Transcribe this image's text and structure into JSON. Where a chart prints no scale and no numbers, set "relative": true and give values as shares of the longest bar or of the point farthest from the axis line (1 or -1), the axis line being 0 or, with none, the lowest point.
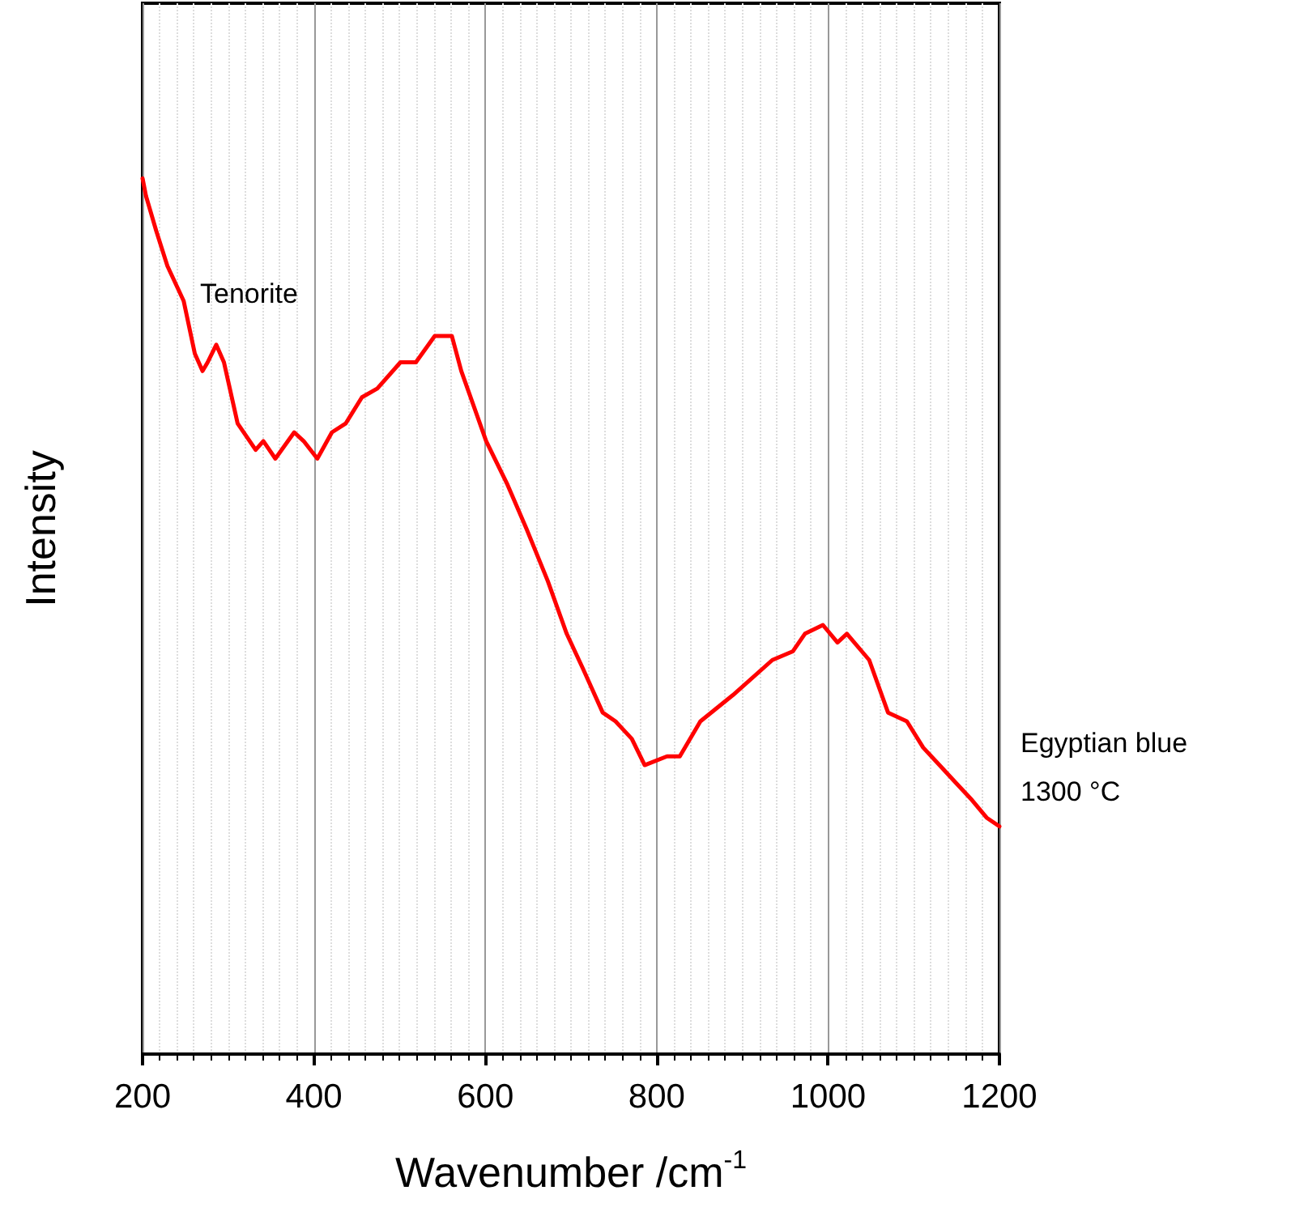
{
  "chart_data": {
    "type": "line",
    "relative": true,
    "xlabel": "Wavenumber /cm$^{-1}$",
    "ylabel": "Intensity",
    "xlim": [
      200,
      1200
    ],
    "xticks": [
      200,
      400,
      600,
      800,
      1000,
      1200
    ],
    "grid": "x",
    "marker": "none",
    "annotations": [
      {
        "text": "Tenorite",
        "x": 286,
        "y": 0.81
      },
      "Egyptian blue",
      "1300 °C"
    ],
    "series": [
      {
        "color": "#ff0000",
        "x": [
          200,
          204,
          216,
          229,
          248,
          261,
          270,
          276,
          286,
          295,
          311,
          332,
          341,
          355,
          377,
          388,
          404,
          421,
          437,
          456,
          474,
          501,
          519,
          541,
          561,
          572,
          601,
          626,
          648,
          673,
          695,
          714,
          737,
          752,
          771,
          786,
          812,
          827,
          851,
          889,
          935,
          959,
          973,
          994,
          1011,
          1022,
          1048,
          1070,
          1092,
          1111,
          1130,
          1149,
          1168,
          1185,
          1200
        ],
        "values": [
          1.0,
          0.98,
          0.94,
          0.9,
          0.86,
          0.8,
          0.78,
          0.79,
          0.81,
          0.79,
          0.72,
          0.69,
          0.7,
          0.68,
          0.71,
          0.7,
          0.68,
          0.71,
          0.72,
          0.75,
          0.76,
          0.79,
          0.79,
          0.82,
          0.82,
          0.78,
          0.7,
          0.65,
          0.6,
          0.54,
          0.48,
          0.44,
          0.39,
          0.38,
          0.36,
          0.33,
          0.34,
          0.34,
          0.38,
          0.41,
          0.45,
          0.46,
          0.48,
          0.49,
          0.47,
          0.48,
          0.45,
          0.39,
          0.38,
          0.35,
          0.33,
          0.31,
          0.29,
          0.27,
          0.26
        ]
      }
    ]
  }
}
